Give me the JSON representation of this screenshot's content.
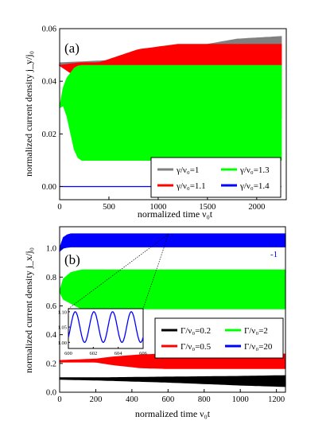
{
  "chart_data": [
    {
      "type": "area",
      "panel_label": "(a)",
      "xlabel": "normalized time ν₀t",
      "ylabel": "normalized current density j_y/j₀",
      "xlim": [
        0,
        2300
      ],
      "ylim": [
        -0.005,
        0.06
      ],
      "xticks": [
        0,
        500,
        1000,
        1500,
        2000
      ],
      "yticks": [
        0.0,
        0.02,
        0.04,
        0.06
      ],
      "tick_labels_y": [
        "0.00",
        "0.02",
        "0.04",
        "0.06"
      ],
      "grid": false,
      "legend_position": "bottom-right",
      "series": [
        {
          "name": "γ/ν₀=1",
          "color": "#808080",
          "x": [
            0,
            600,
            1200,
            1800,
            2250
          ],
          "lower": [
            0.046,
            0.045,
            0.04,
            0.036,
            0.034
          ],
          "upper": [
            0.047,
            0.048,
            0.052,
            0.056,
            0.057
          ]
        },
        {
          "name": "γ/ν₀=1.1",
          "color": "#ff0000",
          "x": [
            0,
            200,
            400,
            800,
            1200,
            1600,
            2250
          ],
          "lower": [
            0.046,
            0.041,
            0.04,
            0.037,
            0.03,
            0.027,
            0.026
          ],
          "upper": [
            0.046,
            0.047,
            0.047,
            0.052,
            0.054,
            0.054,
            0.054
          ]
        },
        {
          "name": "γ/ν₀=1.3",
          "color": "#00ff00",
          "x": [
            0,
            50,
            150,
            200,
            2250
          ],
          "lower": [
            0.03,
            0.031,
            0.014,
            0.01,
            0.01
          ],
          "upper": [
            0.03,
            0.04,
            0.045,
            0.046,
            0.046
          ]
        },
        {
          "name": "γ/ν₀=1.4",
          "color": "#0000ff",
          "x": [
            0,
            2250
          ],
          "lower": [
            0.0,
            0.0
          ],
          "upper": [
            0.0,
            0.0
          ]
        }
      ]
    },
    {
      "type": "area",
      "panel_label": "(b)",
      "xlabel": "normalized time ν₀t",
      "ylabel": "normalized current density j_x/j₀",
      "xlim": [
        0,
        1250
      ],
      "ylim": [
        0,
        1.15
      ],
      "xticks": [
        0,
        200,
        400,
        600,
        800,
        1000,
        1200
      ],
      "yticks": [
        0.0,
        0.2,
        0.4,
        0.6,
        0.8,
        1.0
      ],
      "tick_labels_y": [
        "0.0",
        "0.2",
        "0.4",
        "0.6",
        "0.8",
        "1.0"
      ],
      "grid": false,
      "legend_position": "lower-right",
      "annotation": "-1",
      "series": [
        {
          "name": "Γ/ν₀=0.2",
          "color": "#000000",
          "x": [
            0,
            200,
            600,
            1000,
            1250
          ],
          "lower": [
            0.09,
            0.085,
            0.07,
            0.05,
            0.04
          ],
          "upper": [
            0.1,
            0.1,
            0.105,
            0.11,
            0.115
          ]
        },
        {
          "name": "Γ/ν₀=0.5",
          "color": "#ff0000",
          "x": [
            0,
            200,
            300,
            450,
            600,
            1250
          ],
          "lower": [
            0.21,
            0.21,
            0.19,
            0.17,
            0.165,
            0.165
          ],
          "upper": [
            0.22,
            0.23,
            0.245,
            0.26,
            0.265,
            0.265
          ]
        },
        {
          "name": "Γ/ν₀=2",
          "color": "#00ff00",
          "x": [
            0,
            15,
            60,
            120,
            1250
          ],
          "lower": [
            0.7,
            0.65,
            0.62,
            0.58,
            0.58
          ],
          "upper": [
            0.7,
            0.78,
            0.83,
            0.85,
            0.85
          ]
        },
        {
          "name": "Γ/ν₀=20",
          "color": "#0000ff",
          "x": [
            0,
            15,
            50,
            1250
          ],
          "lower": [
            0.98,
            1.0,
            1.01,
            1.01
          ],
          "upper": [
            1.0,
            1.07,
            1.1,
            1.1
          ]
        }
      ],
      "inset": {
        "xlim": [
          600,
          606
        ],
        "ylim": [
          0.98,
          1.11
        ],
        "xticks": [
          600,
          602,
          604,
          606
        ],
        "yticks": [
          1.0,
          1.05,
          1.1
        ],
        "tick_labels_y": [
          "1.00",
          "1.05",
          "1.10"
        ],
        "series_color": "#0000ff",
        "period": 1.5,
        "min": 1.0,
        "max": 1.1
      }
    }
  ]
}
